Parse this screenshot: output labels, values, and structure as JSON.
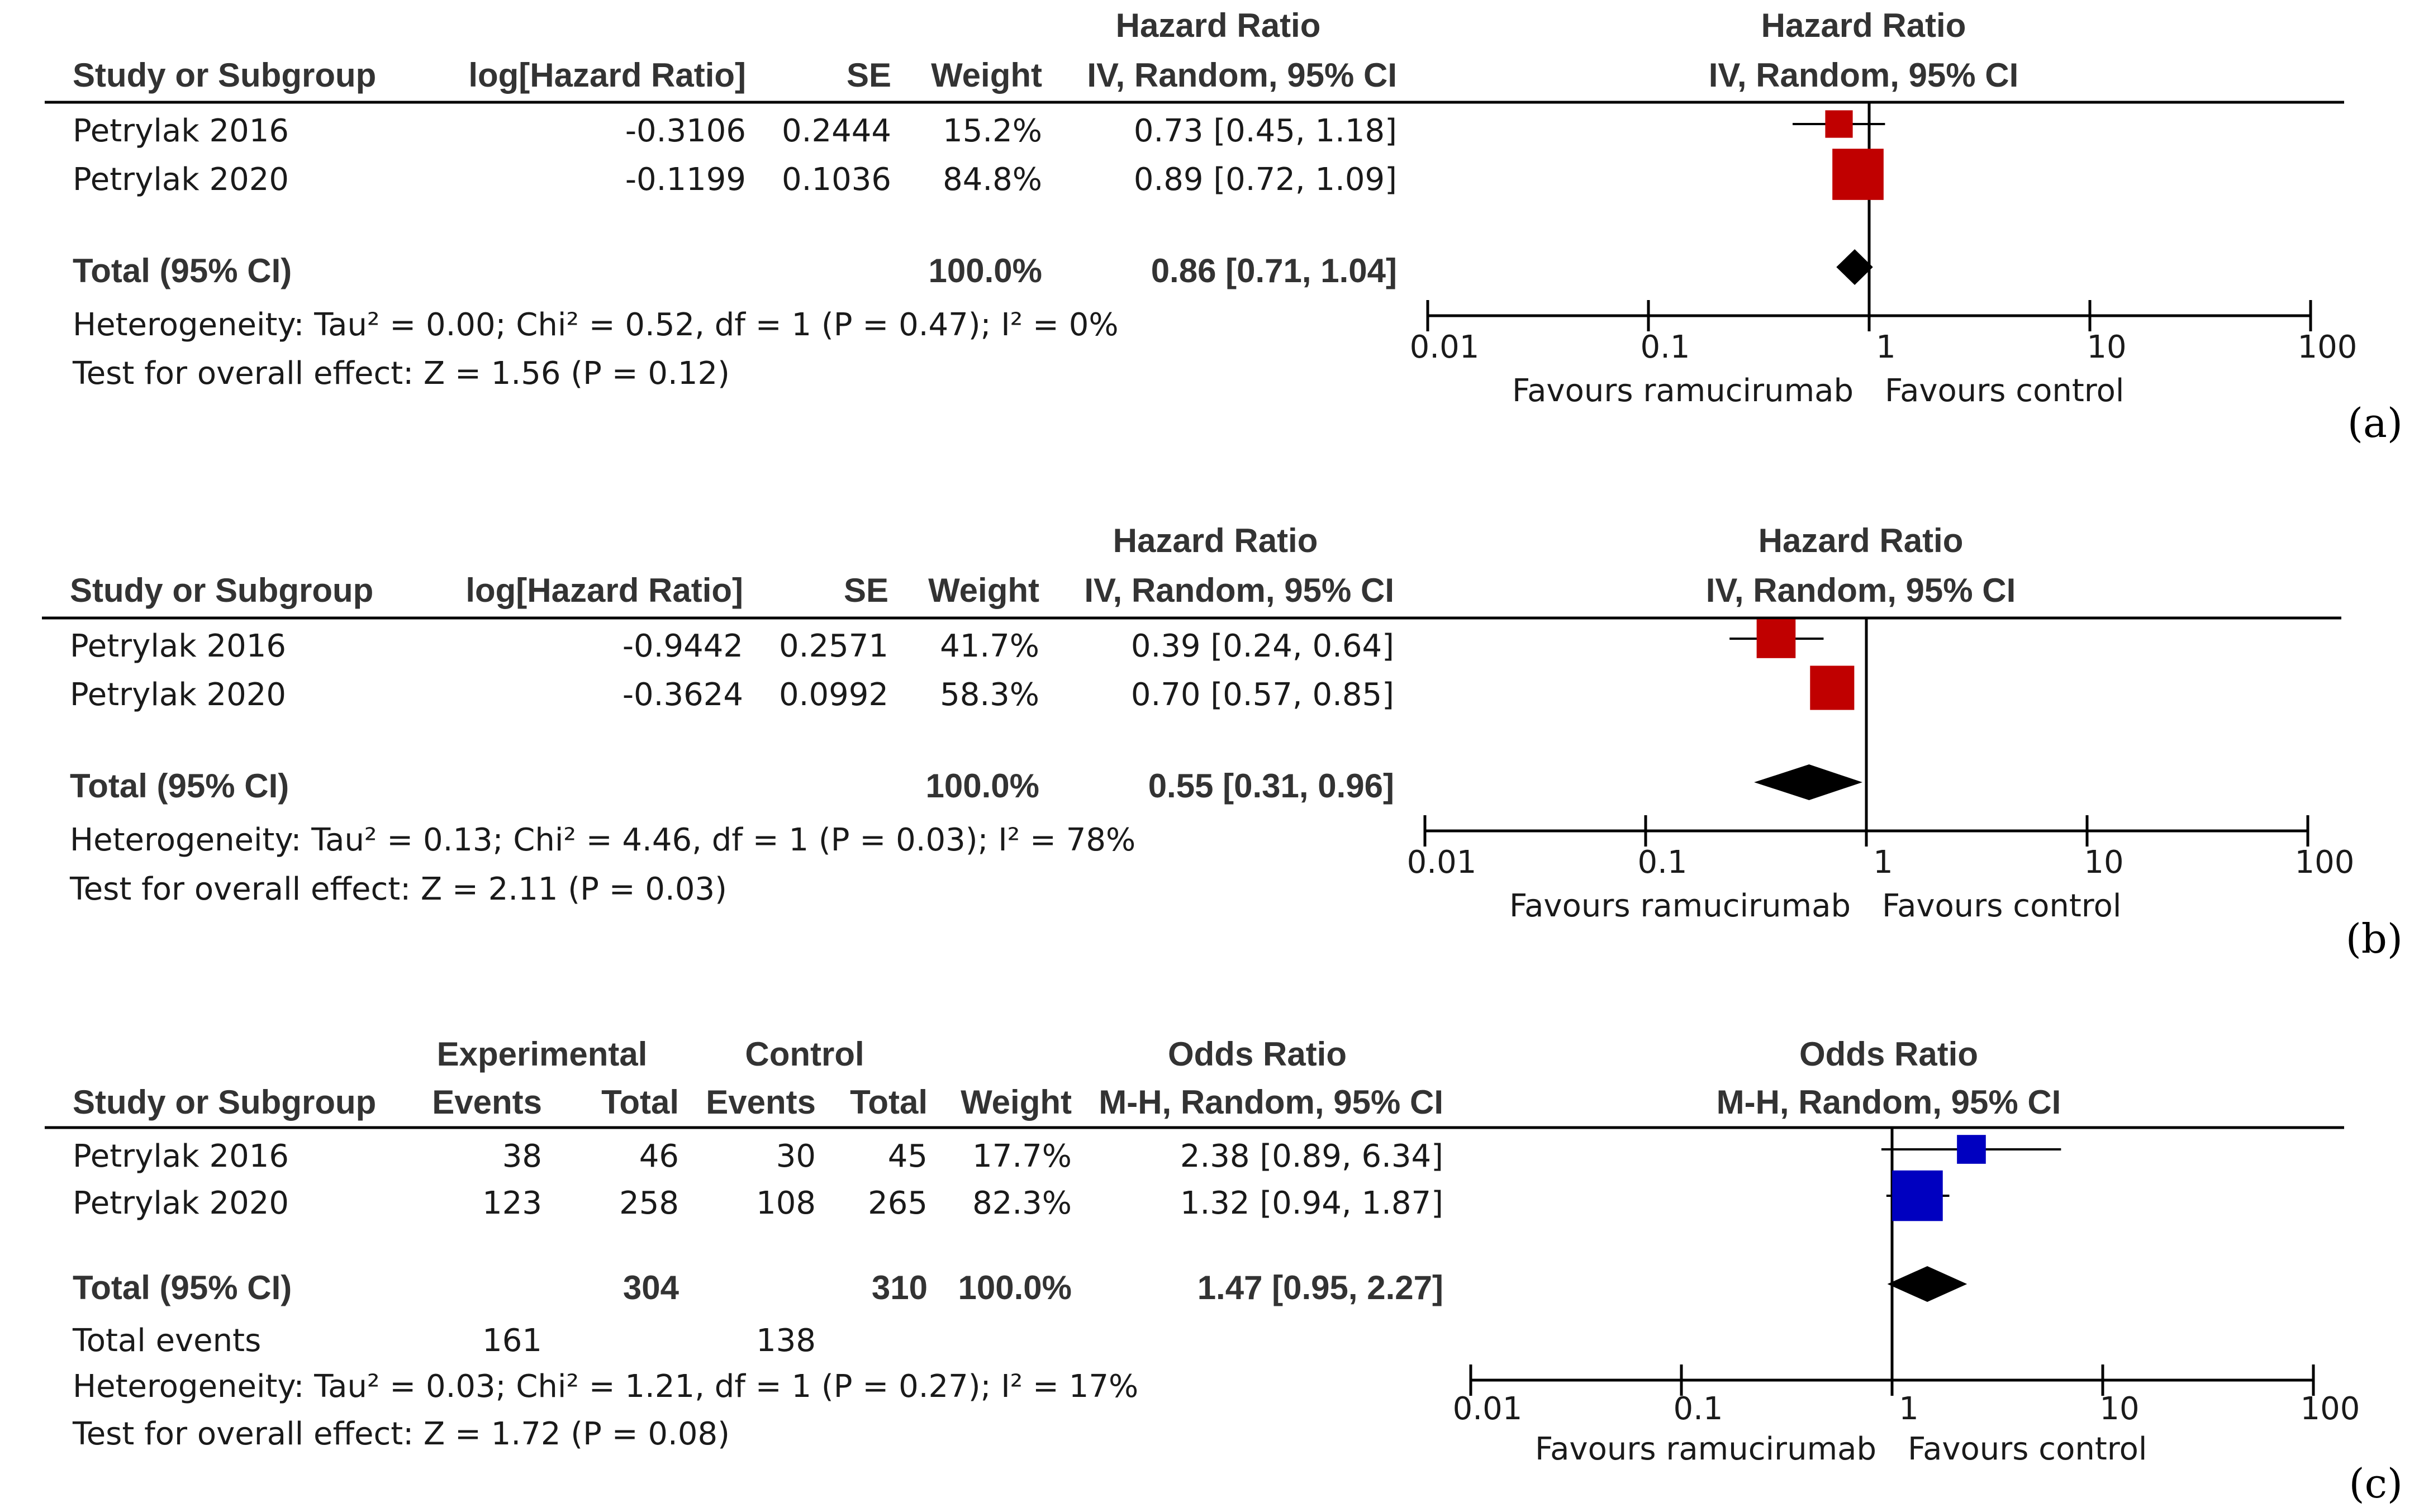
{
  "chart_data": [
    {
      "type": "forest",
      "panel_label": "(a)",
      "measure": "Hazard Ratio",
      "method": "IV, Random, 95% CI",
      "columns": [
        "Study or Subgroup",
        "log[Hazard Ratio]",
        "SE",
        "Weight",
        "IV, Random, 95% CI"
      ],
      "studies": [
        {
          "name": "Petrylak 2016",
          "log_hr": "-0.3106",
          "se": "0.2444",
          "weight": "15.2%",
          "ci_text": "0.73 [0.45, 1.18]",
          "est": 0.73,
          "lo": 0.45,
          "hi": 1.18,
          "w": 15.2
        },
        {
          "name": "Petrylak 2020",
          "log_hr": "-0.1199",
          "se": "0.1036",
          "weight": "84.8%",
          "ci_text": "0.89 [0.72, 1.09]",
          "est": 0.89,
          "lo": 0.72,
          "hi": 1.09,
          "w": 84.8
        }
      ],
      "total": {
        "label": "Total (95% CI)",
        "weight": "100.0%",
        "ci_text": "0.86 [0.71, 1.04]",
        "est": 0.86,
        "lo": 0.71,
        "hi": 1.04
      },
      "heterogeneity": "Heterogeneity: Tau² = 0.00; Chi² = 0.52, df = 1 (P = 0.47); I² = 0%",
      "overall": "Test for overall effect: Z = 1.56 (P = 0.12)",
      "axis_ticks": [
        "0.01",
        "0.1",
        "1",
        "10",
        "100"
      ],
      "favours_left": "Favours ramucirumab",
      "favours_right": "Favours control",
      "color": "#c00000"
    },
    {
      "type": "forest",
      "panel_label": "(b)",
      "measure": "Hazard Ratio",
      "method": "IV, Random, 95% CI",
      "columns": [
        "Study or Subgroup",
        "log[Hazard Ratio]",
        "SE",
        "Weight",
        "IV, Random, 95% CI"
      ],
      "studies": [
        {
          "name": "Petrylak 2016",
          "log_hr": "-0.9442",
          "se": "0.2571",
          "weight": "41.7%",
          "ci_text": "0.39 [0.24, 0.64]",
          "est": 0.39,
          "lo": 0.24,
          "hi": 0.64,
          "w": 41.7
        },
        {
          "name": "Petrylak 2020",
          "log_hr": "-0.3624",
          "se": "0.0992",
          "weight": "58.3%",
          "ci_text": "0.70 [0.57, 0.85]",
          "est": 0.7,
          "lo": 0.57,
          "hi": 0.85,
          "w": 58.3
        }
      ],
      "total": {
        "label": "Total (95% CI)",
        "weight": "100.0%",
        "ci_text": "0.55 [0.31, 0.96]",
        "est": 0.55,
        "lo": 0.31,
        "hi": 0.96
      },
      "heterogeneity": "Heterogeneity: Tau² = 0.13; Chi² = 4.46, df = 1 (P = 0.03); I² = 78%",
      "overall": "Test for overall effect: Z = 2.11 (P = 0.03)",
      "axis_ticks": [
        "0.01",
        "0.1",
        "1",
        "10",
        "100"
      ],
      "favours_left": "Favours ramucirumab",
      "favours_right": "Favours control",
      "color": "#c00000"
    },
    {
      "type": "forest",
      "panel_label": "(c)",
      "measure": "Odds Ratio",
      "method": "M-H, Random, 95% CI",
      "group_headers": [
        "Experimental",
        "Control"
      ],
      "columns": [
        "Study or Subgroup",
        "Events",
        "Total",
        "Events",
        "Total",
        "Weight",
        "M-H, Random, 95% CI"
      ],
      "studies": [
        {
          "name": "Petrylak 2016",
          "exp_events": "38",
          "exp_total": "46",
          "ctl_events": "30",
          "ctl_total": "45",
          "weight": "17.7%",
          "ci_text": "2.38 [0.89, 6.34]",
          "est": 2.38,
          "lo": 0.89,
          "hi": 6.34,
          "w": 17.7
        },
        {
          "name": "Petrylak 2020",
          "exp_events": "123",
          "exp_total": "258",
          "ctl_events": "108",
          "ctl_total": "265",
          "weight": "82.3%",
          "ci_text": "1.32 [0.94, 1.87]",
          "est": 1.32,
          "lo": 0.94,
          "hi": 1.87,
          "w": 82.3
        }
      ],
      "total": {
        "label": "Total (95% CI)",
        "exp_total": "304",
        "ctl_total": "310",
        "weight": "100.0%",
        "ci_text": "1.47 [0.95, 2.27]",
        "est": 1.47,
        "lo": 0.95,
        "hi": 2.27
      },
      "total_events": {
        "label": "Total events",
        "exp": "161",
        "ctl": "138"
      },
      "heterogeneity": "Heterogeneity: Tau² = 0.03; Chi² = 1.21, df = 1 (P = 0.27); I² = 17%",
      "overall": "Test for overall effect: Z = 1.72 (P = 0.08)",
      "axis_ticks": [
        "0.01",
        "0.1",
        "1",
        "10",
        "100"
      ],
      "favours_left": "Favours ramucirumab",
      "favours_right": "Favours control",
      "color": "#0000c0"
    }
  ]
}
